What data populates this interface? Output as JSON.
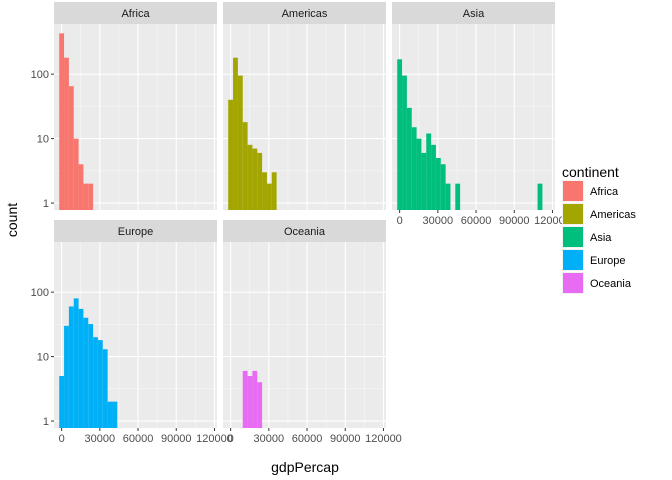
{
  "chart_data": {
    "type": "bar",
    "xlabel": "gdpPercap",
    "ylabel": "count",
    "x_ticks": [
      0,
      30000,
      60000,
      90000,
      120000
    ],
    "x_tick_labels": [
      "0",
      "30000",
      "60000",
      "90000",
      "120000"
    ],
    "xlim": [
      -6000,
      122000
    ],
    "y_scale": "log10",
    "y_ticks": [
      1,
      10,
      100
    ],
    "y_tick_labels": [
      "1",
      "10",
      "100"
    ],
    "ylim": [
      0.78,
      600
    ],
    "bin_width": 3800,
    "grid": true,
    "legend": {
      "title": "continent",
      "position": "right",
      "entries": [
        "Africa",
        "Americas",
        "Asia",
        "Europe",
        "Oceania"
      ]
    },
    "series": [
      {
        "name": "Africa",
        "color": "#F8766D",
        "bins": [
          {
            "x": 0,
            "count": 430
          },
          {
            "x": 3800,
            "count": 180
          },
          {
            "x": 7600,
            "count": 65
          },
          {
            "x": 11400,
            "count": 10
          },
          {
            "x": 15200,
            "count": 4
          },
          {
            "x": 19000,
            "count": 2
          },
          {
            "x": 22800,
            "count": 2
          }
        ]
      },
      {
        "name": "Americas",
        "color": "#A3A500",
        "bins": [
          {
            "x": 0,
            "count": 40
          },
          {
            "x": 3800,
            "count": 180
          },
          {
            "x": 7600,
            "count": 95
          },
          {
            "x": 11400,
            "count": 18
          },
          {
            "x": 15200,
            "count": 8
          },
          {
            "x": 19000,
            "count": 7
          },
          {
            "x": 22800,
            "count": 6
          },
          {
            "x": 26600,
            "count": 3
          },
          {
            "x": 30400,
            "count": 2
          },
          {
            "x": 34200,
            "count": 3
          }
        ]
      },
      {
        "name": "Asia",
        "color": "#00BF7D",
        "bins": [
          {
            "x": 0,
            "count": 170
          },
          {
            "x": 3800,
            "count": 95
          },
          {
            "x": 7600,
            "count": 30
          },
          {
            "x": 11400,
            "count": 15
          },
          {
            "x": 15200,
            "count": 10
          },
          {
            "x": 19000,
            "count": 6
          },
          {
            "x": 22800,
            "count": 12
          },
          {
            "x": 26600,
            "count": 8
          },
          {
            "x": 30400,
            "count": 5
          },
          {
            "x": 34200,
            "count": 4
          },
          {
            "x": 38000,
            "count": 2
          },
          {
            "x": 45600,
            "count": 2
          },
          {
            "x": 110200,
            "count": 2
          }
        ]
      },
      {
        "name": "Europe",
        "color": "#00B0F6",
        "bins": [
          {
            "x": 0,
            "count": 5
          },
          {
            "x": 3800,
            "count": 30
          },
          {
            "x": 7600,
            "count": 60
          },
          {
            "x": 11400,
            "count": 80
          },
          {
            "x": 15200,
            "count": 55
          },
          {
            "x": 19000,
            "count": 40
          },
          {
            "x": 22800,
            "count": 32
          },
          {
            "x": 26600,
            "count": 20
          },
          {
            "x": 30400,
            "count": 18
          },
          {
            "x": 34200,
            "count": 13
          },
          {
            "x": 38000,
            "count": 2
          },
          {
            "x": 41800,
            "count": 2
          }
        ]
      },
      {
        "name": "Oceania",
        "color": "#E76BF3",
        "bins": [
          {
            "x": 11400,
            "count": 6
          },
          {
            "x": 15200,
            "count": 5
          },
          {
            "x": 19000,
            "count": 6
          },
          {
            "x": 22800,
            "count": 4
          }
        ]
      }
    ],
    "facets": [
      "Africa",
      "Americas",
      "Asia",
      "Europe",
      "Oceania"
    ]
  }
}
